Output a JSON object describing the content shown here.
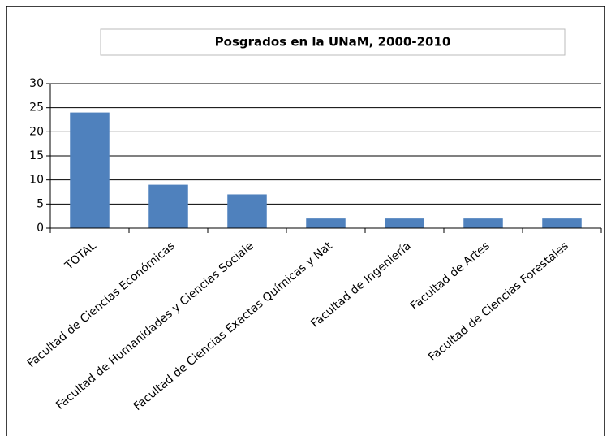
{
  "chart_data": {
    "type": "bar",
    "title": "Posgrados en la UNaM, 2000-2010",
    "categories": [
      "TOTAL",
      "Facultad de Ciencias Económicas",
      "Facultad de Humanidades y Ciencias Sociale",
      "Facultad de Ciencias Exactas Químicas y Nat",
      "Facultad de Ingeniería",
      "Facultad de Artes",
      "Facultad de Ciencias Forestales"
    ],
    "values": [
      24,
      9,
      7,
      2,
      2,
      2,
      2
    ],
    "color": "#4f81bd",
    "ylim": [
      0,
      30
    ],
    "yticks": [
      0,
      5,
      10,
      15,
      20,
      25,
      30
    ],
    "grid": true
  }
}
